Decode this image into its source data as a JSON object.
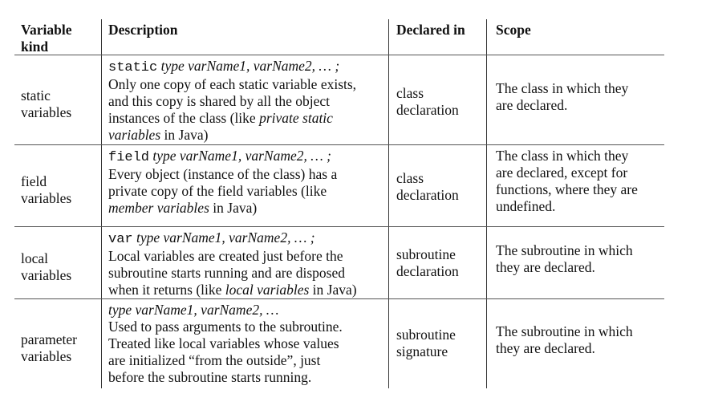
{
  "headers": {
    "kind": [
      "Variable",
      "kind"
    ],
    "description": "Description",
    "declared_in": "Declared in",
    "scope": "Scope"
  },
  "rows": [
    {
      "kind": [
        "static",
        "variables"
      ],
      "syntax": {
        "keyword": "static",
        "params": "type varName1, varName2, … ;"
      },
      "description": [
        "Only one copy of each static variable exists,",
        "and this copy is shared by all the  object",
        "instances of the class (like "
      ],
      "description_italic": "private static",
      "description_tail_italic": "variables",
      "description_tail": " in Java)",
      "declared_in": [
        "class",
        "declaration"
      ],
      "scope": [
        "The class in which they",
        "are declared."
      ]
    },
    {
      "kind": [
        "field",
        "variables"
      ],
      "syntax": {
        "keyword": "field",
        "params": "type varName1, varName2, … ;"
      },
      "description": [
        "Every object (instance of the class) has a",
        "private copy of the field variables (like"
      ],
      "description_tail_italic": "member variables",
      "description_tail": " in Java)",
      "declared_in": [
        "class",
        "declaration"
      ],
      "scope": [
        "The class in which they",
        "are declared, except for",
        "functions, where they are",
        "undefined."
      ]
    },
    {
      "kind": [
        "local",
        "variables"
      ],
      "syntax": {
        "keyword": "var",
        "params": "type varName1, varName2, … ;"
      },
      "description": [
        "Local variables are created just before the",
        "subroutine starts running and are disposed"
      ],
      "description_last_prefix": "when it returns (like ",
      "description_last_italic": "local variables",
      "description_last_suffix": " in Java)",
      "declared_in": [
        "subroutine",
        "declaration"
      ],
      "scope": [
        "The subroutine in which",
        "they are declared."
      ]
    },
    {
      "kind": [
        "parameter",
        "variables"
      ],
      "syntax": {
        "params": "type varName1, varName2, …"
      },
      "description": [
        "Used to pass arguments to the subroutine.",
        "Treated like local variables whose values",
        "are initialized “from the outside”, just",
        "before the subroutine starts running."
      ],
      "declared_in": [
        "subroutine",
        "signature"
      ],
      "scope": [
        "The subroutine in which",
        "they are declared."
      ]
    }
  ]
}
